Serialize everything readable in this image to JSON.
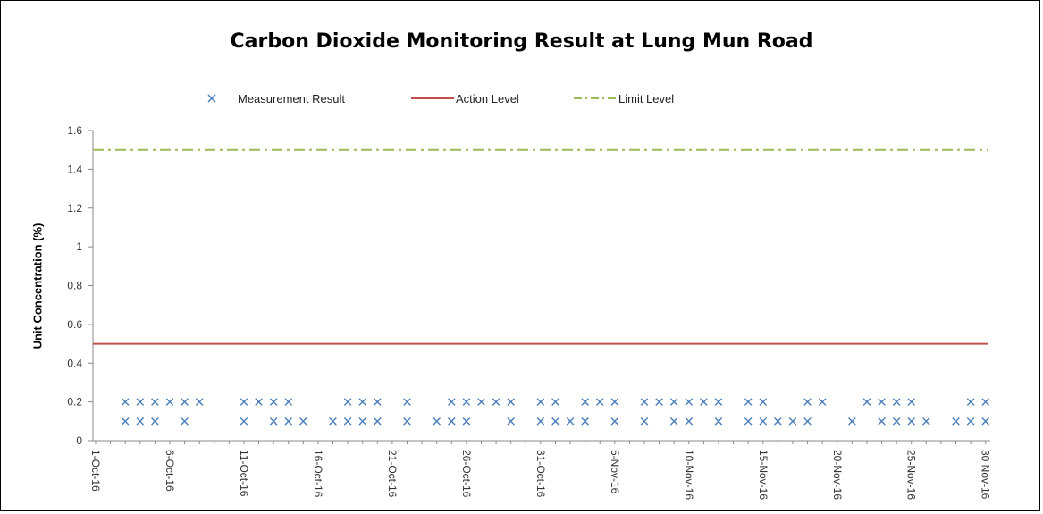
{
  "chart_data": {
    "type": "scatter",
    "title": "Carbon Dioxide Monitoring Result at Lung Mun Road",
    "xlabel": "",
    "ylabel": "Unit Concentration (%)",
    "ylim": [
      0,
      1.6
    ],
    "y_ticks": [
      "0",
      "0.2",
      "0.4",
      "0.6",
      "0.8",
      "1",
      "1.2",
      "1.4",
      "1.6"
    ],
    "xlim": [
      "2016-10-01",
      "2016-11-30"
    ],
    "x_tick_labels": [
      "1-Oct-16",
      "6-Oct-16",
      "11-Oct-16",
      "16-Oct-16",
      "21-Oct-16",
      "26-Oct-16",
      "31-Oct-16",
      "5-Nov-16",
      "10-Nov-16",
      "15-Nov-16",
      "20-Nov-16",
      "25-Nov-16",
      "30 Nov-16"
    ],
    "grid": false,
    "legend_position": "top",
    "series": [
      {
        "name": "Measurement Result",
        "marker": "x",
        "color": "#4a7ebb",
        "points": [
          {
            "x": "2016-10-03",
            "y": 0.2
          },
          {
            "x": "2016-10-03",
            "y": 0.1
          },
          {
            "x": "2016-10-04",
            "y": 0.2
          },
          {
            "x": "2016-10-04",
            "y": 0.1
          },
          {
            "x": "2016-10-05",
            "y": 0.2
          },
          {
            "x": "2016-10-05",
            "y": 0.1
          },
          {
            "x": "2016-10-06",
            "y": 0.2
          },
          {
            "x": "2016-10-07",
            "y": 0.2
          },
          {
            "x": "2016-10-07",
            "y": 0.1
          },
          {
            "x": "2016-10-08",
            "y": 0.2
          },
          {
            "x": "2016-10-11",
            "y": 0.2
          },
          {
            "x": "2016-10-11",
            "y": 0.1
          },
          {
            "x": "2016-10-12",
            "y": 0.2
          },
          {
            "x": "2016-10-13",
            "y": 0.2
          },
          {
            "x": "2016-10-13",
            "y": 0.1
          },
          {
            "x": "2016-10-14",
            "y": 0.2
          },
          {
            "x": "2016-10-14",
            "y": 0.1
          },
          {
            "x": "2016-10-15",
            "y": 0.1
          },
          {
            "x": "2016-10-17",
            "y": 0.1
          },
          {
            "x": "2016-10-18",
            "y": 0.2
          },
          {
            "x": "2016-10-18",
            "y": 0.1
          },
          {
            "x": "2016-10-19",
            "y": 0.2
          },
          {
            "x": "2016-10-19",
            "y": 0.1
          },
          {
            "x": "2016-10-20",
            "y": 0.2
          },
          {
            "x": "2016-10-20",
            "y": 0.1
          },
          {
            "x": "2016-10-22",
            "y": 0.2
          },
          {
            "x": "2016-10-22",
            "y": 0.1
          },
          {
            "x": "2016-10-24",
            "y": 0.1
          },
          {
            "x": "2016-10-25",
            "y": 0.2
          },
          {
            "x": "2016-10-25",
            "y": 0.1
          },
          {
            "x": "2016-10-26",
            "y": 0.2
          },
          {
            "x": "2016-10-26",
            "y": 0.1
          },
          {
            "x": "2016-10-27",
            "y": 0.2
          },
          {
            "x": "2016-10-28",
            "y": 0.2
          },
          {
            "x": "2016-10-29",
            "y": 0.2
          },
          {
            "x": "2016-10-29",
            "y": 0.1
          },
          {
            "x": "2016-10-31",
            "y": 0.2
          },
          {
            "x": "2016-10-31",
            "y": 0.1
          },
          {
            "x": "2016-11-01",
            "y": 0.2
          },
          {
            "x": "2016-11-01",
            "y": 0.1
          },
          {
            "x": "2016-11-02",
            "y": 0.1
          },
          {
            "x": "2016-11-03",
            "y": 0.2
          },
          {
            "x": "2016-11-03",
            "y": 0.1
          },
          {
            "x": "2016-11-04",
            "y": 0.2
          },
          {
            "x": "2016-11-05",
            "y": 0.2
          },
          {
            "x": "2016-11-05",
            "y": 0.1
          },
          {
            "x": "2016-11-07",
            "y": 0.2
          },
          {
            "x": "2016-11-07",
            "y": 0.1
          },
          {
            "x": "2016-11-08",
            "y": 0.2
          },
          {
            "x": "2016-11-09",
            "y": 0.2
          },
          {
            "x": "2016-11-09",
            "y": 0.1
          },
          {
            "x": "2016-11-10",
            "y": 0.2
          },
          {
            "x": "2016-11-10",
            "y": 0.1
          },
          {
            "x": "2016-11-11",
            "y": 0.2
          },
          {
            "x": "2016-11-12",
            "y": 0.2
          },
          {
            "x": "2016-11-12",
            "y": 0.1
          },
          {
            "x": "2016-11-14",
            "y": 0.2
          },
          {
            "x": "2016-11-14",
            "y": 0.1
          },
          {
            "x": "2016-11-15",
            "y": 0.2
          },
          {
            "x": "2016-11-15",
            "y": 0.1
          },
          {
            "x": "2016-11-16",
            "y": 0.1
          },
          {
            "x": "2016-11-17",
            "y": 0.1
          },
          {
            "x": "2016-11-18",
            "y": 0.2
          },
          {
            "x": "2016-11-18",
            "y": 0.1
          },
          {
            "x": "2016-11-19",
            "y": 0.2
          },
          {
            "x": "2016-11-21",
            "y": 0.1
          },
          {
            "x": "2016-11-22",
            "y": 0.2
          },
          {
            "x": "2016-11-23",
            "y": 0.2
          },
          {
            "x": "2016-11-23",
            "y": 0.1
          },
          {
            "x": "2016-11-24",
            "y": 0.2
          },
          {
            "x": "2016-11-24",
            "y": 0.1
          },
          {
            "x": "2016-11-25",
            "y": 0.2
          },
          {
            "x": "2016-11-25",
            "y": 0.1
          },
          {
            "x": "2016-11-26",
            "y": 0.1
          },
          {
            "x": "2016-11-28",
            "y": 0.1
          },
          {
            "x": "2016-11-29",
            "y": 0.2
          },
          {
            "x": "2016-11-29",
            "y": 0.1
          },
          {
            "x": "2016-11-30",
            "y": 0.2
          },
          {
            "x": "2016-11-30",
            "y": 0.1
          }
        ]
      },
      {
        "name": "Action Level",
        "type": "line",
        "style": "solid",
        "color": "#c0504d",
        "value": 0.5
      },
      {
        "name": "Limit Level",
        "type": "line",
        "style": "dash-dot",
        "color": "#9bbb59",
        "value": 1.5
      }
    ]
  }
}
